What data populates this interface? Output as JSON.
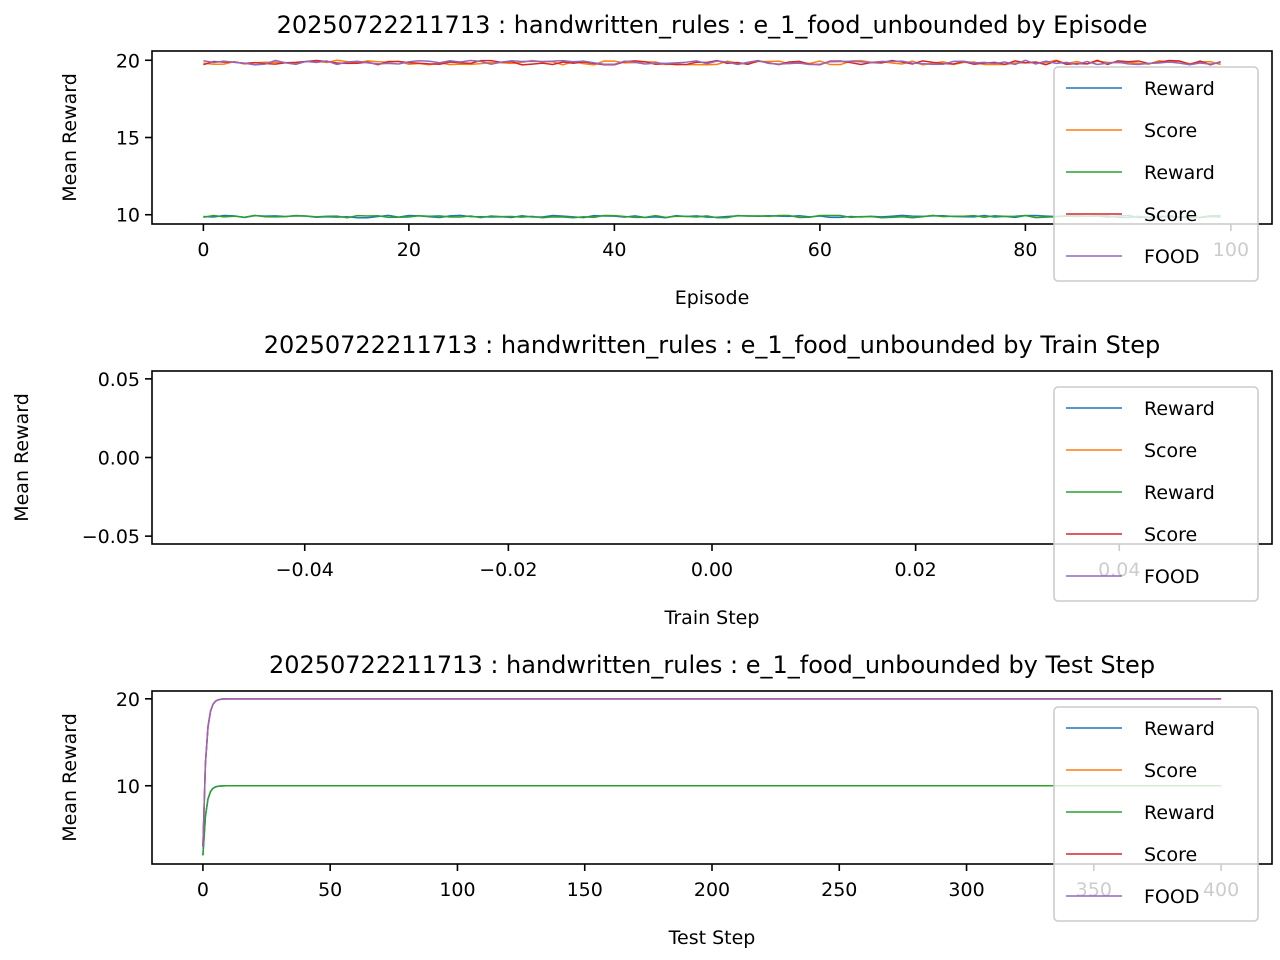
{
  "colors": {
    "blue": "#1f77b4",
    "orange": "#ff7f0e",
    "green": "#2ca02c",
    "red": "#d62728",
    "purple": "#9467bd",
    "axis": "#000000",
    "legend_border": "#cccccc"
  },
  "chart_data": [
    {
      "type": "line",
      "title": "20250722211713 : handwritten_rules : e_1_food_unbounded by Episode",
      "xlabel": "Episode",
      "ylabel": "Mean Reward",
      "xlim": [
        -5,
        104
      ],
      "ylim": [
        9.4,
        20.6
      ],
      "xticks": [
        "0",
        "20",
        "40",
        "60",
        "80",
        "100"
      ],
      "xtick_values": [
        0,
        20,
        40,
        60,
        80,
        100
      ],
      "yticks": [
        "10",
        "15",
        "20"
      ],
      "ytick_values": [
        10,
        15,
        20
      ],
      "grid": false,
      "legend_loc": "upper right",
      "series": [
        {
          "name": "Reward",
          "color": "blue",
          "x_range": [
            0,
            99
          ],
          "pattern": "noise",
          "base": 9.88,
          "amp": 0.08,
          "seed": 1
        },
        {
          "name": "Score",
          "color": "orange",
          "x_range": [
            0,
            99
          ],
          "pattern": "noise",
          "base": 19.85,
          "amp": 0.15,
          "seed": 2
        },
        {
          "name": "Reward",
          "color": "green",
          "x_range": [
            0,
            99
          ],
          "pattern": "noise",
          "base": 9.88,
          "amp": 0.08,
          "seed": 3
        },
        {
          "name": "Score",
          "color": "red",
          "x_range": [
            0,
            99
          ],
          "pattern": "noise",
          "base": 19.85,
          "amp": 0.15,
          "seed": 4
        },
        {
          "name": "FOOD",
          "color": "purple",
          "x_range": [
            0,
            99
          ],
          "pattern": "noise",
          "base": 19.85,
          "amp": 0.15,
          "seed": 5
        }
      ]
    },
    {
      "type": "line",
      "title": "20250722211713 : handwritten_rules : e_1_food_unbounded by Train Step",
      "xlabel": "Train Step",
      "ylabel": "Mean Reward",
      "xlim": [
        -0.055,
        0.055
      ],
      "ylim": [
        -0.055,
        0.055
      ],
      "xticks": [
        "−0.04",
        "−0.02",
        "0.00",
        "0.02",
        "0.04"
      ],
      "xtick_values": [
        -0.04,
        -0.02,
        0.0,
        0.02,
        0.04
      ],
      "yticks": [
        "−0.05",
        "0.00",
        "0.05"
      ],
      "ytick_values": [
        -0.05,
        0.0,
        0.05
      ],
      "grid": false,
      "legend_loc": "upper right",
      "series": [
        {
          "name": "Reward",
          "color": "blue",
          "pattern": "empty"
        },
        {
          "name": "Score",
          "color": "orange",
          "pattern": "empty"
        },
        {
          "name": "Reward",
          "color": "green",
          "pattern": "empty"
        },
        {
          "name": "Score",
          "color": "red",
          "pattern": "empty"
        },
        {
          "name": "FOOD",
          "color": "purple",
          "pattern": "empty"
        }
      ]
    },
    {
      "type": "line",
      "title": "20250722211713 : handwritten_rules : e_1_food_unbounded by Test Step",
      "xlabel": "Test Step",
      "ylabel": "Mean Reward",
      "xlim": [
        -20,
        420
      ],
      "ylim": [
        1.0,
        20.9
      ],
      "xticks": [
        "0",
        "50",
        "100",
        "150",
        "200",
        "250",
        "300",
        "350",
        "400"
      ],
      "xtick_values": [
        0,
        50,
        100,
        150,
        200,
        250,
        300,
        350,
        400
      ],
      "yticks": [
        "10",
        "20"
      ],
      "ytick_values": [
        10,
        20
      ],
      "grid": false,
      "legend_loc": "upper right",
      "series": [
        {
          "name": "Reward",
          "color": "blue",
          "x_range": [
            0,
            400
          ],
          "pattern": "rise",
          "start": 2.0,
          "plateau": 10.0,
          "tau": 1.2
        },
        {
          "name": "Score",
          "color": "orange",
          "x_range": [
            0,
            400
          ],
          "pattern": "rise",
          "start": 3.0,
          "plateau": 20.0,
          "tau": 1.2
        },
        {
          "name": "Reward",
          "color": "green",
          "x_range": [
            0,
            400
          ],
          "pattern": "rise",
          "start": 2.0,
          "plateau": 10.0,
          "tau": 1.2
        },
        {
          "name": "Score",
          "color": "red",
          "x_range": [
            0,
            400
          ],
          "pattern": "rise",
          "start": 3.0,
          "plateau": 20.0,
          "tau": 1.2
        },
        {
          "name": "FOOD",
          "color": "purple",
          "x_range": [
            0,
            400
          ],
          "pattern": "rise",
          "start": 3.0,
          "plateau": 20.0,
          "tau": 1.2
        }
      ]
    }
  ]
}
